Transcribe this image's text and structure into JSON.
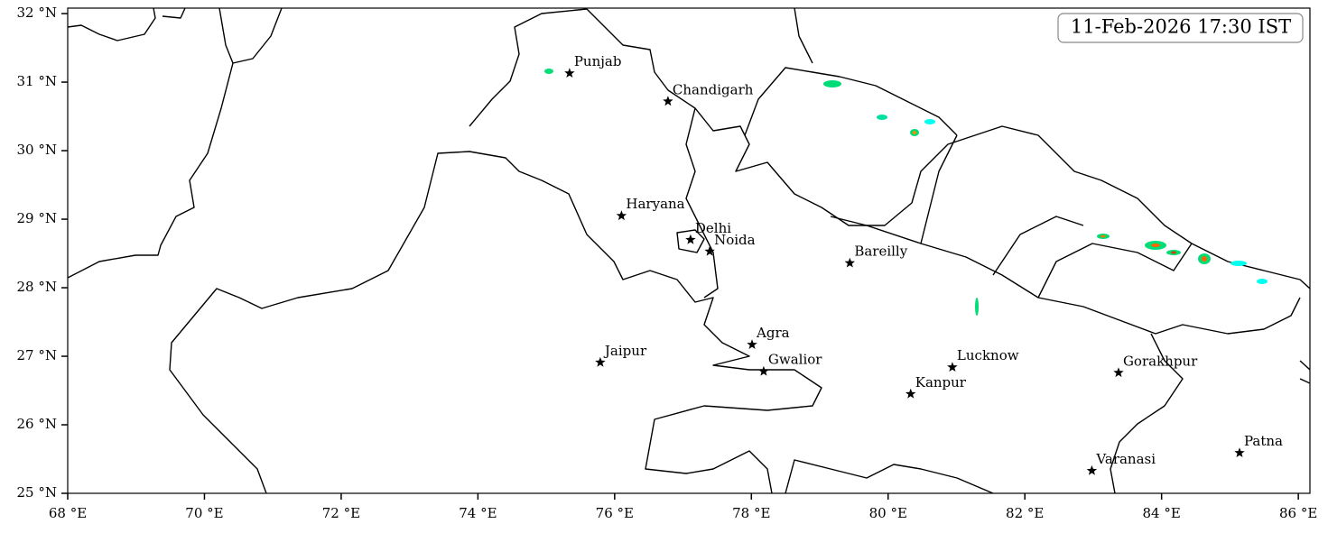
{
  "timestamp": "11-Feb-2026 17:30 IST",
  "map": {
    "xlim": [
      68,
      86.17
    ],
    "ylim": [
      25,
      32.08
    ],
    "xticks": [
      {
        "value": 68,
        "label": "68 °E"
      },
      {
        "value": 70,
        "label": "70 °E"
      },
      {
        "value": 72,
        "label": "72 °E"
      },
      {
        "value": 74,
        "label": "74 °E"
      },
      {
        "value": 76,
        "label": "76 °E"
      },
      {
        "value": 78,
        "label": "78 °E"
      },
      {
        "value": 80,
        "label": "80 °E"
      },
      {
        "value": 82,
        "label": "82 °E"
      },
      {
        "value": 84,
        "label": "84 °E"
      },
      {
        "value": 86,
        "label": "86 °E"
      }
    ],
    "yticks": [
      {
        "value": 25,
        "label": "25 °N"
      },
      {
        "value": 26,
        "label": "26 °N"
      },
      {
        "value": 27,
        "label": "27 °N"
      },
      {
        "value": 28,
        "label": "28 °N"
      },
      {
        "value": 29,
        "label": "29 °N"
      },
      {
        "value": 30,
        "label": "30 °N"
      },
      {
        "value": 31,
        "label": "31 °N"
      },
      {
        "value": 32,
        "label": "32 °N"
      }
    ],
    "cities": [
      {
        "name": "Punjab",
        "lon": 75.34,
        "lat": 31.13
      },
      {
        "name": "Chandigarh",
        "lon": 76.78,
        "lat": 30.72
      },
      {
        "name": "Haryana",
        "lon": 76.1,
        "lat": 29.05
      },
      {
        "name": "Delhi",
        "lon": 77.11,
        "lat": 28.7
      },
      {
        "name": "Noida",
        "lon": 77.39,
        "lat": 28.53
      },
      {
        "name": "Bareilly",
        "lon": 79.44,
        "lat": 28.36
      },
      {
        "name": "Agra",
        "lon": 78.01,
        "lat": 27.17
      },
      {
        "name": "Jaipur",
        "lon": 75.79,
        "lat": 26.91
      },
      {
        "name": "Gwalior",
        "lon": 78.18,
        "lat": 26.78
      },
      {
        "name": "Lucknow",
        "lon": 80.94,
        "lat": 26.84
      },
      {
        "name": "Kanpur",
        "lon": 80.33,
        "lat": 26.45
      },
      {
        "name": "Gorakhpur",
        "lon": 83.37,
        "lat": 26.76
      },
      {
        "name": "Varanasi",
        "lon": 82.98,
        "lat": 25.33
      },
      {
        "name": "Patna",
        "lon": 85.14,
        "lat": 25.59
      }
    ]
  }
}
